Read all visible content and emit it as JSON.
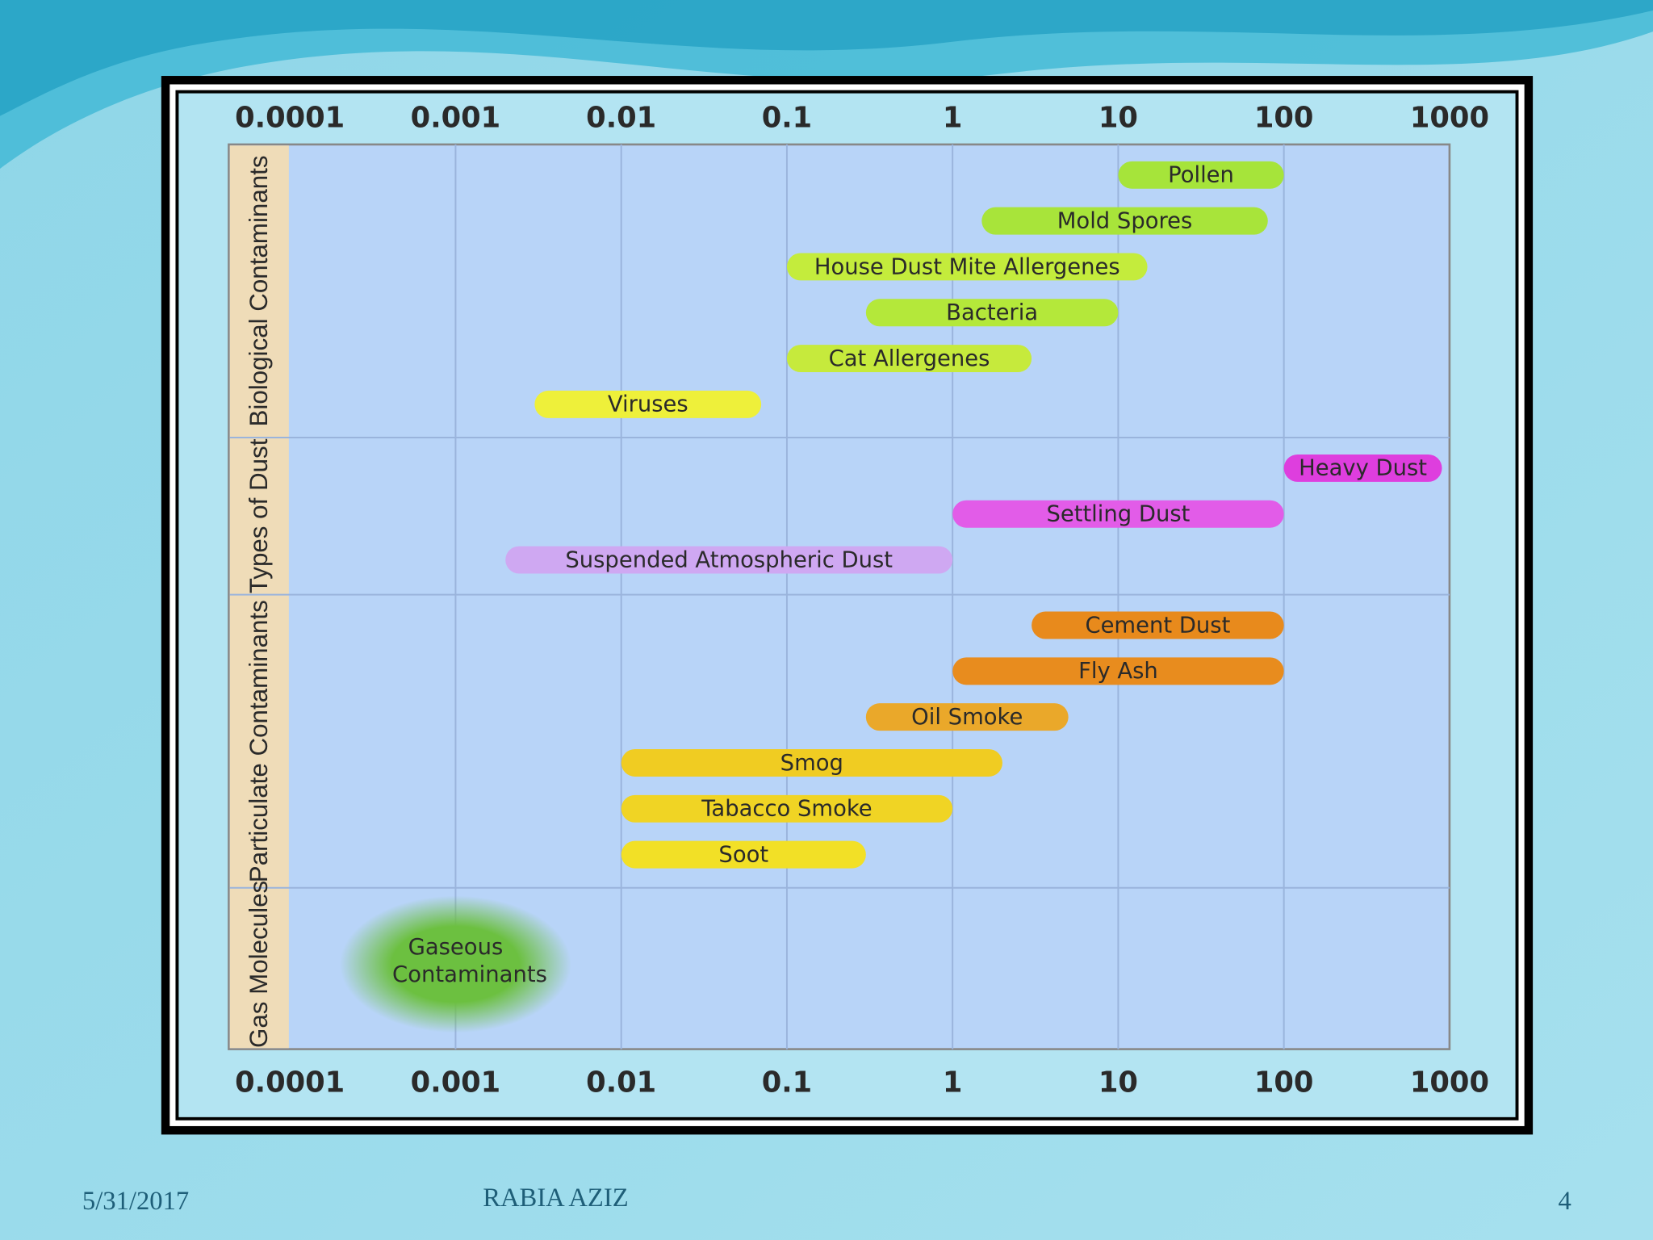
{
  "chart_data": {
    "type": "range-bar",
    "log_x": true,
    "grid": true,
    "xlim": [
      0.0001,
      1000
    ],
    "xticks": [
      0.0001,
      0.001,
      0.01,
      0.1,
      1,
      10,
      100,
      1000
    ],
    "groups": [
      {
        "name": "Biological Contaminants",
        "items": [
          {
            "name": "Pollen",
            "start": 10,
            "end": 100,
            "color": "#a6e43a"
          },
          {
            "name": "Mold Spores",
            "start": 1.5,
            "end": 80,
            "color": "#a8e43a"
          },
          {
            "name": "House Dust Mite Allergenes",
            "start": 0.1,
            "end": 15,
            "color": "#c4ec3c"
          },
          {
            "name": "Bacteria",
            "start": 0.3,
            "end": 10,
            "color": "#b4e83a"
          },
          {
            "name": "Cat Allergenes",
            "start": 0.1,
            "end": 3,
            "color": "#c6ea3c"
          },
          {
            "name": "Viruses",
            "start": 0.003,
            "end": 0.07,
            "color": "#eef03a"
          }
        ]
      },
      {
        "name": "Types of Dust",
        "items": [
          {
            "name": "Heavy Dust",
            "start": 100,
            "end": 900,
            "color": "#de3ede"
          },
          {
            "name": "Settling Dust",
            "start": 1,
            "end": 100,
            "color": "#e25ce8"
          },
          {
            "name": "Suspended Atmospheric Dust",
            "start": 0.002,
            "end": 1,
            "color": "#cfa8f2"
          }
        ]
      },
      {
        "name": "Particulate Contaminants",
        "items": [
          {
            "name": "Cement Dust",
            "start": 3,
            "end": 100,
            "color": "#e88a1c"
          },
          {
            "name": "Fly Ash",
            "start": 1,
            "end": 100,
            "color": "#e88c1e"
          },
          {
            "name": "Oil Smoke",
            "start": 0.3,
            "end": 5,
            "color": "#eaa82a"
          },
          {
            "name": "Smog",
            "start": 0.01,
            "end": 2,
            "color": "#f0cc22"
          },
          {
            "name": "Tabacco Smoke",
            "start": 0.01,
            "end": 1,
            "color": "#f0d424"
          },
          {
            "name": "Soot",
            "start": 0.01,
            "end": 0.3,
            "color": "#f2e026"
          }
        ]
      },
      {
        "name": "Gas Molecules",
        "items": [
          {
            "name": "Gaseous Contaminants",
            "start": 0.0002,
            "end": 0.005,
            "color": "#6cc040"
          }
        ]
      }
    ]
  },
  "footer": {
    "date": "5/31/2017",
    "author": "RABIA AZIZ",
    "page": "4"
  }
}
